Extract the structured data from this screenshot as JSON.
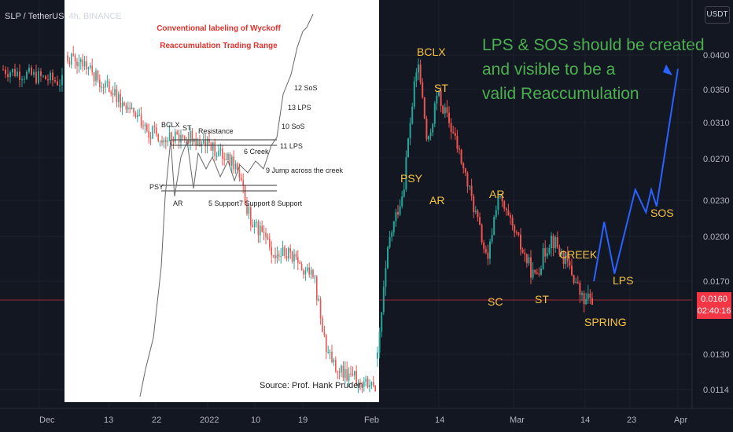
{
  "header": {
    "symbol": "SLP / TetherUS, 4h, BINANCE",
    "currency_button": "USDT"
  },
  "price_axis": {
    "ticks": [
      "0.0400",
      "0.0350",
      "0.0310",
      "0.0270",
      "0.0230",
      "0.0200",
      "0.0170",
      "0.0130",
      "0.0114"
    ],
    "current_price": "0.0160",
    "countdown": "02:40:16",
    "current_price_color": "#f23645"
  },
  "time_axis": {
    "ticks": [
      "Dec",
      "13",
      "22",
      "2022",
      "10",
      "19",
      "Feb",
      "14",
      "Mar",
      "14",
      "23",
      "Apr"
    ]
  },
  "inset": {
    "title_line1": "Conventional labeling of Wyckoff",
    "title_line2": "Reaccumulation Trading Range",
    "source": "Source: Prof. Hank Pruden",
    "labels": [
      "BCLX",
      "ST",
      "Resistance",
      "6 Creek",
      "9 Jump across the creek",
      "PSY",
      "AR",
      "5 Support",
      "7 Support",
      "8 Support",
      "11 LPS",
      "10 SoS",
      "13 LPS",
      "12 SoS"
    ]
  },
  "annotations": {
    "main_text_line1": "LPS & SOS should be created",
    "main_text_line2": "and visible to be a",
    "main_text_line3": "valid Reaccumulation",
    "labels": [
      "BCLX",
      "ST",
      "PSY",
      "AR",
      "AR",
      "CREEK",
      "SC",
      "ST",
      "SPRING",
      "LPS",
      "SOS"
    ]
  },
  "colors": {
    "background": "#131722",
    "up": "#26a69a",
    "down": "#ef5350",
    "label": "#f6c344",
    "note": "#4caf50",
    "projection": "#2962ff",
    "inset_bg": "#ffffff"
  },
  "chart_data": {
    "type": "candlestick",
    "title": "SLP / TetherUS, 4h, BINANCE",
    "y_ticks": [
      0.0114,
      0.013,
      0.017,
      0.02,
      0.023,
      0.027,
      0.031,
      0.035,
      0.04
    ],
    "x_ticks": [
      "Dec",
      "13",
      "22",
      "2022",
      "10",
      "19",
      "Feb",
      "14",
      "Mar",
      "14",
      "23",
      "Apr"
    ],
    "ylim": [
      0.011,
      0.044
    ],
    "current_price": 0.016,
    "price_series": {
      "x": [
        "Jan 31",
        "Feb 4",
        "Feb 7",
        "Feb 10",
        "Feb 12",
        "Feb 14",
        "Feb 17",
        "Feb 20",
        "Feb 24",
        "Feb 26",
        "Mar 1",
        "Mar 5",
        "Mar 8",
        "Mar 11",
        "Mar 14",
        "Mar 16"
      ],
      "y": [
        0.0128,
        0.0195,
        0.024,
        0.039,
        0.028,
        0.0345,
        0.03,
        0.0245,
        0.018,
        0.0235,
        0.0205,
        0.0172,
        0.02,
        0.0182,
        0.0158,
        0.0162
      ]
    },
    "projection": {
      "x": [
        "Mar 16",
        "Mar 18",
        "Mar 20",
        "Mar 24",
        "Mar 26",
        "Mar 27",
        "Mar 28",
        "Apr 1"
      ],
      "y": [
        0.017,
        0.0212,
        0.0175,
        0.024,
        0.022,
        0.024,
        0.0225,
        0.038
      ]
    }
  }
}
